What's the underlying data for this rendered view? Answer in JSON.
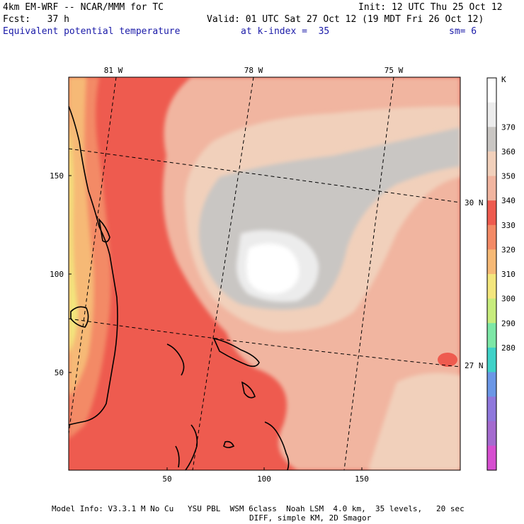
{
  "header": {
    "model": "4km EM-WRF -- NCAR/MMM for TC",
    "init": "Init: 12 UTC Thu 25 Oct 12",
    "fcst": "Fcst:   37 h",
    "valid": "Valid: 01 UTC Sat 27 Oct 12 (19 MDT Fri 26 Oct 12)",
    "field": "Equivalent potential temperature",
    "level": "at k-index =  35",
    "smooth": "sm= 6"
  },
  "axes": {
    "x_ticks": [
      "50",
      "100",
      "150"
    ],
    "y_ticks": [
      "150",
      "100",
      "50"
    ],
    "lon_labels": [
      "81 W",
      "78 W",
      "75 W"
    ],
    "lat_labels": [
      "30 N",
      "27 N"
    ]
  },
  "colorbar": {
    "unit": "K",
    "labels": [
      "370",
      "360",
      "350",
      "340",
      "330",
      "320",
      "310",
      "300",
      "290",
      "280"
    ],
    "colors": [
      "#ffffff",
      "#ececec",
      "#c9c6c3",
      "#f1d0bb",
      "#f1b5a0",
      "#ee5b4f",
      "#f38a66",
      "#f6b976",
      "#f3e67d",
      "#c7ec7d",
      "#7de7a6",
      "#3fd2c8",
      "#6b97e6",
      "#8f78dc",
      "#a46bcf",
      "#d64fd0"
    ]
  },
  "footer": {
    "line1": "Model Info: V3.3.1 M No Cu   YSU PBL  WSM 6class  Noah LSM  4.0 km,  35 levels,   20 sec",
    "line2": "DIFF, simple KM, 2D Smagor"
  }
}
